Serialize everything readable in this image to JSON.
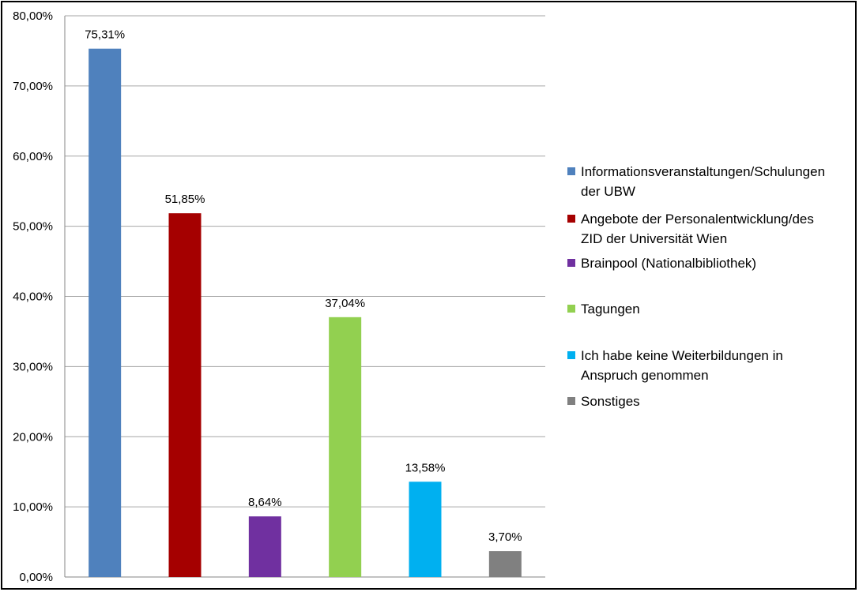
{
  "chart_data": {
    "type": "bar",
    "categories": [
      "Informationsveranstaltungen/Schulungen der UBW",
      "Angebote der Personalentwicklung/des ZID der Universität Wien",
      "Brainpool (Nationalbibliothek)",
      "Tagungen",
      "Ich habe keine Weiterbildungen in Anspruch genommen",
      "Sonstiges"
    ],
    "values": [
      75.31,
      51.85,
      8.64,
      37.04,
      13.58,
      3.7
    ],
    "data_labels": [
      "75,31%",
      "51,85%",
      "8,64%",
      "37,04%",
      "13,58%",
      "3,70%"
    ],
    "colors": [
      "#4f81bd",
      "#a50000",
      "#7030a0",
      "#92d050",
      "#00b0f0",
      "#808080"
    ],
    "ylim": [
      0,
      80
    ],
    "yticks": [
      0,
      10,
      20,
      30,
      40,
      50,
      60,
      70,
      80
    ],
    "ytick_labels": [
      "0,00%",
      "10,00%",
      "20,00%",
      "30,00%",
      "40,00%",
      "50,00%",
      "60,00%",
      "70,00%",
      "80,00%"
    ],
    "grid": true,
    "legend_position": "right",
    "title": "",
    "xlabel": "",
    "ylabel": ""
  }
}
